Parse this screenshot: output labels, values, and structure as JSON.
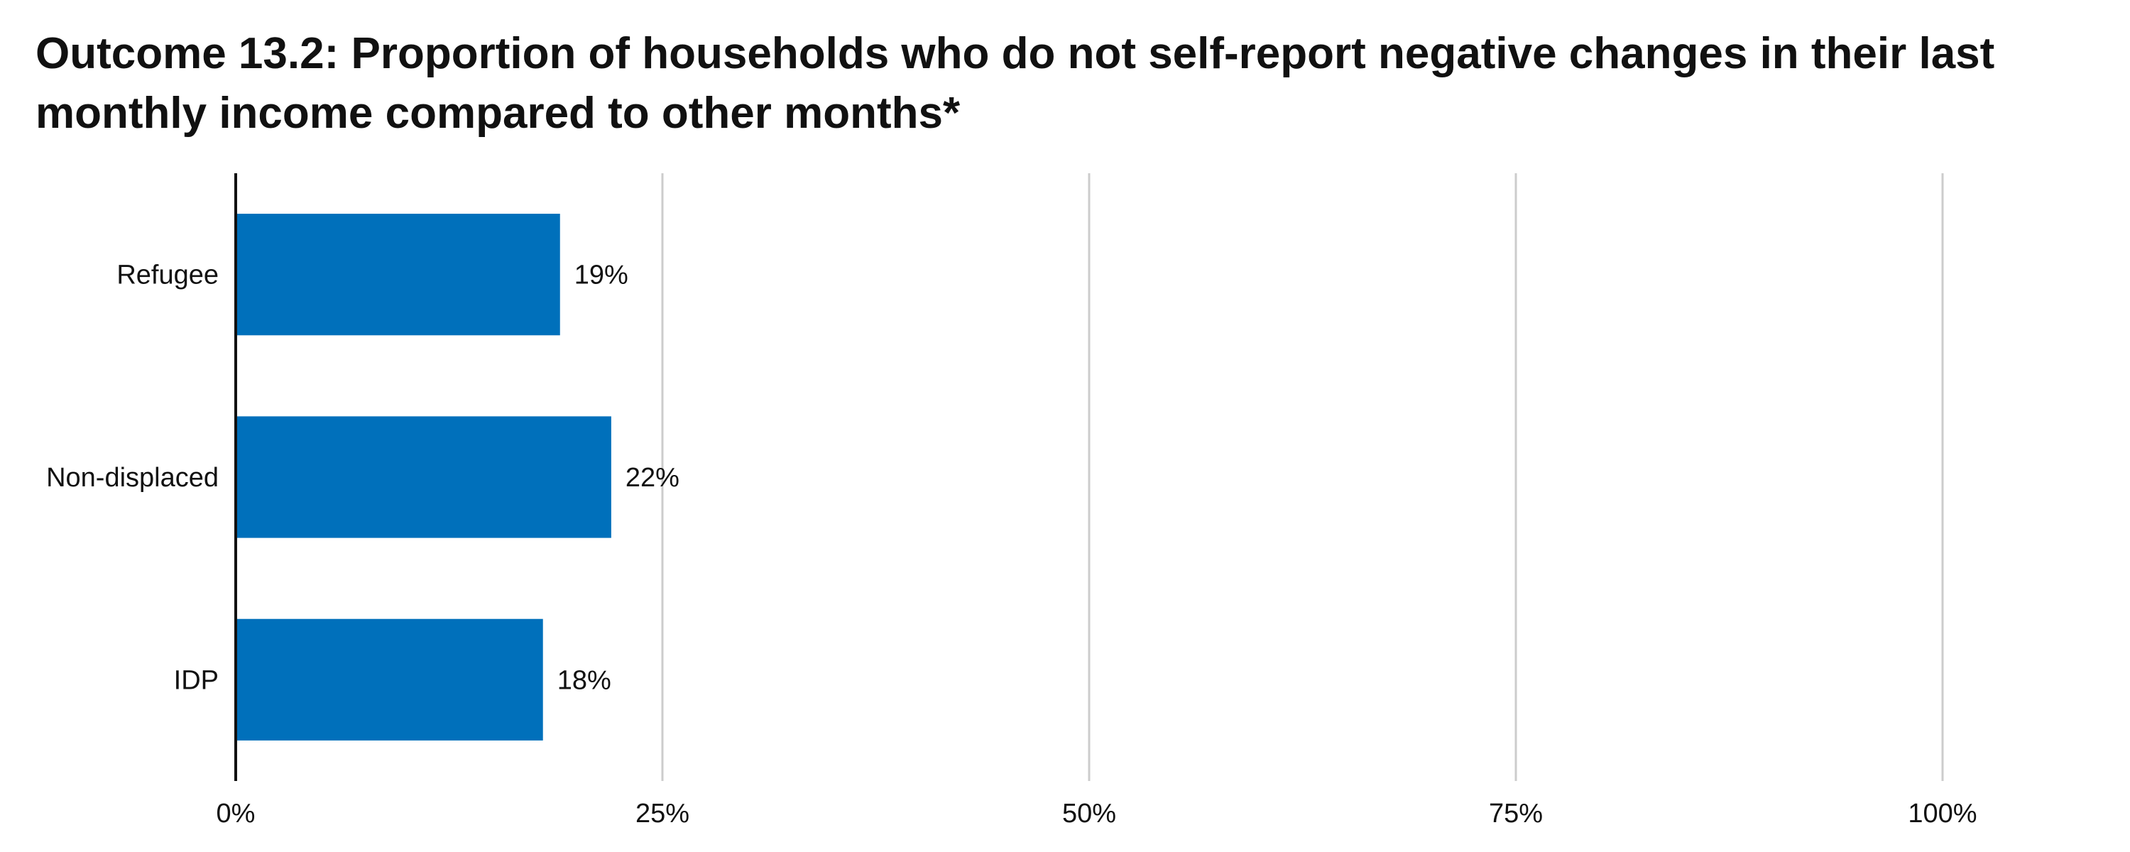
{
  "chart_data": {
    "type": "bar",
    "orientation": "horizontal",
    "title": "Outcome 13.2: Proportion of households who do not self-report negative changes in their last monthly income compared to other months*",
    "categories": [
      "Refugee",
      "Non-displaced",
      "IDP"
    ],
    "values": [
      19,
      22,
      18
    ],
    "value_labels": [
      "19%",
      "22%",
      "18%"
    ],
    "xlim": [
      0,
      100
    ],
    "xticks": [
      0,
      25,
      50,
      75,
      100
    ],
    "xtick_labels": [
      "0%",
      "25%",
      "50%",
      "75%",
      "100%"
    ],
    "xlabel": "",
    "ylabel": "",
    "grid": "vertical",
    "legend": "none",
    "bar_color": "#0070bb",
    "grid_color": "#cccccc",
    "axis_color": "#111111"
  }
}
